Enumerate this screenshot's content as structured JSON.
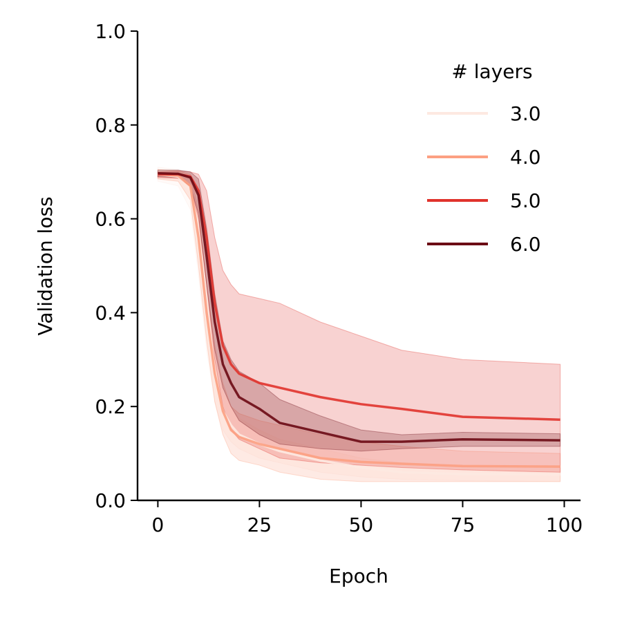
{
  "chart_data": {
    "type": "line",
    "title": "",
    "xlabel": "Epoch",
    "ylabel": "Validation loss",
    "xlim": [
      -5,
      104
    ],
    "ylim": [
      0,
      1.0
    ],
    "xticks": [
      0,
      25,
      50,
      75,
      100
    ],
    "yticks": [
      0.0,
      0.2,
      0.4,
      0.6,
      0.8,
      1.0
    ],
    "xtick_labels": [
      "0",
      "25",
      "50",
      "75",
      "100"
    ],
    "ytick_labels": [
      "0.0",
      "0.2",
      "0.4",
      "0.6",
      "0.8",
      "1.0"
    ],
    "grid": false,
    "legend": {
      "title": "# layers",
      "placement": "top-right"
    },
    "series": [
      {
        "name": "3.0",
        "color": "#fde9e1",
        "x": [
          0,
          5,
          8,
          10,
          12,
          14,
          16,
          18,
          20,
          25,
          30,
          40,
          50,
          60,
          75,
          99
        ],
        "y": [
          0.695,
          0.69,
          0.66,
          0.54,
          0.38,
          0.26,
          0.19,
          0.16,
          0.14,
          0.12,
          0.105,
          0.085,
          0.07,
          0.06,
          0.056,
          0.055
        ],
        "lower": [
          0.68,
          0.67,
          0.62,
          0.48,
          0.32,
          0.21,
          0.15,
          0.125,
          0.11,
          0.09,
          0.08,
          0.06,
          0.05,
          0.045,
          0.042,
          0.04
        ],
        "upper": [
          0.71,
          0.705,
          0.69,
          0.6,
          0.44,
          0.31,
          0.23,
          0.2,
          0.175,
          0.15,
          0.13,
          0.11,
          0.09,
          0.08,
          0.072,
          0.07
        ]
      },
      {
        "name": "4.0",
        "color": "#fca082",
        "x": [
          0,
          5,
          8,
          10,
          12,
          14,
          16,
          18,
          20,
          25,
          30,
          40,
          50,
          60,
          75,
          99
        ],
        "y": [
          0.695,
          0.692,
          0.67,
          0.56,
          0.4,
          0.27,
          0.19,
          0.15,
          0.135,
          0.12,
          0.11,
          0.09,
          0.082,
          0.078,
          0.073,
          0.072
        ],
        "lower": [
          0.685,
          0.68,
          0.64,
          0.5,
          0.34,
          0.21,
          0.14,
          0.1,
          0.085,
          0.075,
          0.06,
          0.045,
          0.04,
          0.04,
          0.04,
          0.04
        ],
        "upper": [
          0.705,
          0.702,
          0.695,
          0.62,
          0.46,
          0.33,
          0.25,
          0.2,
          0.185,
          0.17,
          0.16,
          0.14,
          0.125,
          0.115,
          0.105,
          0.1
        ]
      },
      {
        "name": "5.0",
        "color": "#e0332c",
        "x": [
          0,
          5,
          8,
          10,
          12,
          14,
          16,
          18,
          20,
          25,
          30,
          40,
          50,
          60,
          75,
          99
        ],
        "y": [
          0.695,
          0.695,
          0.69,
          0.66,
          0.56,
          0.42,
          0.33,
          0.29,
          0.27,
          0.25,
          0.24,
          0.22,
          0.205,
          0.195,
          0.178,
          0.172
        ],
        "lower": [
          0.688,
          0.686,
          0.67,
          0.6,
          0.46,
          0.3,
          0.2,
          0.15,
          0.13,
          0.11,
          0.09,
          0.08,
          0.075,
          0.07,
          0.065,
          0.06
        ],
        "upper": [
          0.7,
          0.702,
          0.7,
          0.695,
          0.66,
          0.56,
          0.49,
          0.46,
          0.44,
          0.43,
          0.42,
          0.38,
          0.35,
          0.32,
          0.3,
          0.29
        ]
      },
      {
        "name": "6.0",
        "color": "#6b0a14",
        "x": [
          0,
          5,
          8,
          10,
          12,
          14,
          16,
          18,
          20,
          25,
          30,
          40,
          50,
          60,
          75,
          99
        ],
        "y": [
          0.697,
          0.696,
          0.688,
          0.65,
          0.52,
          0.38,
          0.29,
          0.25,
          0.22,
          0.195,
          0.165,
          0.145,
          0.125,
          0.125,
          0.13,
          0.128
        ],
        "lower": [
          0.69,
          0.688,
          0.67,
          0.61,
          0.46,
          0.32,
          0.24,
          0.2,
          0.17,
          0.14,
          0.12,
          0.11,
          0.105,
          0.11,
          0.115,
          0.115
        ],
        "upper": [
          0.704,
          0.704,
          0.7,
          0.685,
          0.58,
          0.44,
          0.34,
          0.3,
          0.275,
          0.25,
          0.215,
          0.18,
          0.15,
          0.14,
          0.145,
          0.142
        ]
      }
    ]
  }
}
